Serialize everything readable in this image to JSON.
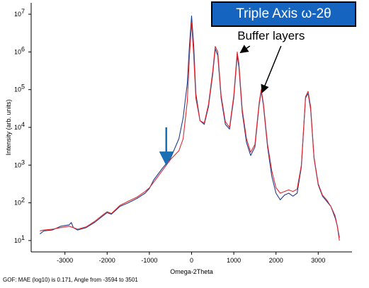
{
  "chart_data": {
    "type": "line",
    "title": "Triple Axis ω-2θ",
    "xlabel": "Omega-2Theta",
    "ylabel": "Intensity (arb. units)",
    "xlim": [
      -3800,
      3800
    ],
    "ylim": [
      5,
      20000000
    ],
    "log_y": true,
    "x_ticks": [
      -3000,
      -2000,
      -1000,
      0,
      1000,
      2000,
      3000
    ],
    "x_tick_labels": [
      "-3000",
      "-2000",
      "-1000",
      "0",
      "1000",
      "2000",
      "3000"
    ],
    "y_ticks": [
      10,
      100,
      1000,
      10000,
      100000,
      1000000,
      10000000
    ],
    "y_tick_labels": [
      "10",
      "10",
      "10",
      "10",
      "10",
      "10",
      "10"
    ],
    "y_tick_exponents": [
      "1",
      "2",
      "3",
      "4",
      "5",
      "6",
      "7"
    ],
    "grid": false,
    "colors": {
      "measured": "#1f3f8f",
      "simulated": "#e0282e",
      "arrow": "#1a6fb5",
      "title_bg": "#1565c0"
    },
    "series": [
      {
        "color": "#1f3f8f",
        "x": [
          -3594,
          -3500,
          -3300,
          -3100,
          -2900,
          -2850,
          -2800,
          -2700,
          -2500,
          -2300,
          -2100,
          -2000,
          -1900,
          -1700,
          -1500,
          -1300,
          -1100,
          -1000,
          -900,
          -700,
          -500,
          -300,
          -200,
          -100,
          -50,
          0,
          50,
          100,
          200,
          300,
          400,
          500,
          560,
          620,
          700,
          800,
          900,
          1000,
          1080,
          1120,
          1200,
          1300,
          1400,
          1500,
          1600,
          1650,
          1700,
          1800,
          1900,
          2000,
          2100,
          2200,
          2300,
          2400,
          2500,
          2600,
          2700,
          2760,
          2820,
          2900,
          3000,
          3100,
          3200,
          3300,
          3400,
          3450,
          3501
        ],
        "y": [
          15,
          18,
          19,
          24,
          26,
          30,
          22,
          19,
          22,
          30,
          45,
          55,
          50,
          80,
          100,
          130,
          180,
          240,
          400,
          800,
          1500,
          5000,
          18000,
          150000,
          1500000,
          9000000,
          1500000,
          80000,
          15000,
          12000,
          35000,
          250000,
          1200000,
          800000,
          60000,
          12000,
          9000,
          60000,
          800000,
          400000,
          25000,
          4000,
          1800,
          3000,
          40000,
          90000,
          40000,
          3000,
          500,
          180,
          120,
          160,
          180,
          150,
          180,
          900,
          60000,
          80000,
          30000,
          1500,
          300,
          150,
          110,
          80,
          40,
          25,
          12
        ]
      },
      {
        "color": "#e0282e",
        "x": [
          -3594,
          -3500,
          -3300,
          -3100,
          -2900,
          -2800,
          -2700,
          -2500,
          -2300,
          -2100,
          -2000,
          -1900,
          -1700,
          -1500,
          -1300,
          -1100,
          -1000,
          -900,
          -700,
          -500,
          -300,
          -200,
          -100,
          -50,
          0,
          50,
          100,
          200,
          300,
          400,
          500,
          560,
          620,
          700,
          800,
          900,
          1000,
          1080,
          1120,
          1200,
          1300,
          1400,
          1500,
          1600,
          1650,
          1700,
          1800,
          1900,
          2000,
          2100,
          2200,
          2300,
          2400,
          2500,
          2600,
          2700,
          2760,
          2820,
          2900,
          3000,
          3100,
          3200,
          3300,
          3400,
          3450,
          3501
        ],
        "y": [
          18,
          19,
          20,
          22,
          24,
          22,
          20,
          23,
          32,
          48,
          58,
          52,
          85,
          110,
          140,
          200,
          250,
          350,
          700,
          1400,
          2400,
          5000,
          50000,
          800000,
          6000000,
          800000,
          60000,
          15000,
          13000,
          40000,
          300000,
          1400000,
          1000000,
          70000,
          14000,
          10000,
          70000,
          1000000,
          500000,
          30000,
          5000,
          2200,
          3500,
          45000,
          100000,
          45000,
          3500,
          700,
          250,
          180,
          200,
          220,
          200,
          230,
          1000,
          65000,
          90000,
          35000,
          1600,
          320,
          160,
          120,
          80,
          45,
          25,
          10
        ]
      }
    ],
    "annotations": [
      {
        "text": "Buffer layers",
        "x": 1800,
        "y": 1500000
      }
    ],
    "marker_arrow": {
      "x": -600,
      "y_from": 10000,
      "y_to": 1200
    },
    "footer": "GOF: MAE (log10) is 0.171, Angle from -3594 to 3501"
  }
}
